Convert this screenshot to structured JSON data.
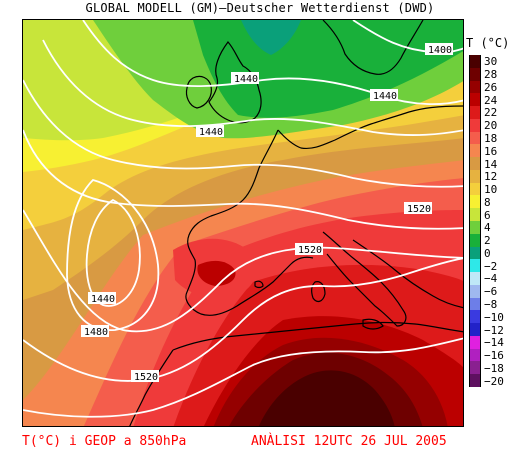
{
  "header": {
    "title": "GLOBAL MODELL (GM)—Deutscher Wetterdienst (DWD)"
  },
  "legend": {
    "title": "T (°C)",
    "entries": [
      {
        "label": "30",
        "color": "#4a0000"
      },
      {
        "label": "28",
        "color": "#6e0000"
      },
      {
        "label": "26",
        "color": "#950000"
      },
      {
        "label": "24",
        "color": "#bb0000"
      },
      {
        "label": "22",
        "color": "#dd1a1a"
      },
      {
        "label": "20",
        "color": "#ef3a3a"
      },
      {
        "label": "18",
        "color": "#f45d4c"
      },
      {
        "label": "16",
        "color": "#f5864f"
      },
      {
        "label": "14",
        "color": "#d89a43"
      },
      {
        "label": "12",
        "color": "#e6b240"
      },
      {
        "label": "10",
        "color": "#f4cf3c"
      },
      {
        "label": "8",
        "color": "#f7f032"
      },
      {
        "label": "6",
        "color": "#c8e53a"
      },
      {
        "label": "4",
        "color": "#6fcf3c"
      },
      {
        "label": "2",
        "color": "#19b03a"
      },
      {
        "label": "0",
        "color": "#0aa07a"
      },
      {
        "label": "−2",
        "color": "#2ee8e8"
      },
      {
        "label": "−4",
        "color": "#bfe8f7"
      },
      {
        "label": "−6",
        "color": "#9fb8ef"
      },
      {
        "label": "−8",
        "color": "#6d7ee8"
      },
      {
        "label": "−10",
        "color": "#3a3ae0"
      },
      {
        "label": "−12",
        "color": "#2222c8"
      },
      {
        "label": "−14",
        "color": "#e020e0"
      },
      {
        "label": "−16",
        "color": "#b020c0"
      },
      {
        "label": "−18",
        "color": "#8a2090"
      },
      {
        "label": "−20",
        "color": "#5e1060"
      }
    ]
  },
  "contour_labels": [
    "1400",
    "1440",
    "1440",
    "1440",
    "1440",
    "1480",
    "1520",
    "1520",
    "1520"
  ],
  "footer": {
    "left": "T(°C) i GEOP a 850hPa",
    "right": "ANÀLISI 12UTC 26 JUL 2005"
  }
}
